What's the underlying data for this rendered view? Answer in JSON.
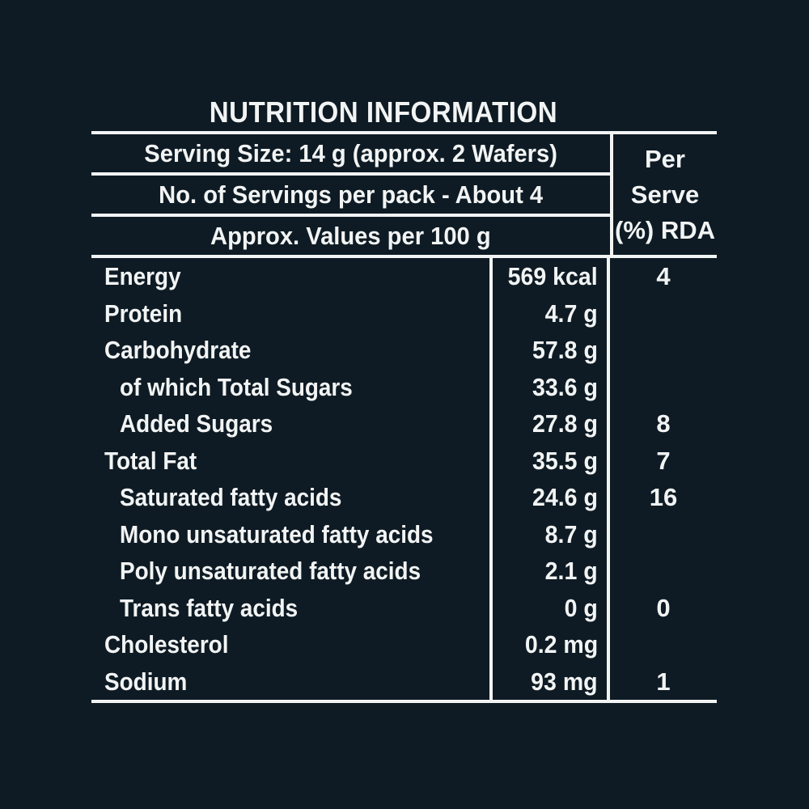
{
  "page": {
    "background_color": "#0e1b24",
    "text_color": "#f2f4f4",
    "line_color": "#f2f4f4"
  },
  "title": "NUTRITION INFORMATION",
  "header": {
    "serving_size": "Serving Size: 14 g (approx. 2 Wafers)",
    "servings_per_pack": "No. of Servings per pack - About 4",
    "values_basis": "Approx. Values per 100 g",
    "rda_column": {
      "line1": "Per",
      "line2": "Serve",
      "line3": "(%) RDA"
    }
  },
  "nutrients": {
    "rows": [
      {
        "label": "Energy",
        "indent": false,
        "value": "569 kcal",
        "rda": "4"
      },
      {
        "label": "Protein",
        "indent": false,
        "value": "4.7 g",
        "rda": ""
      },
      {
        "label": "Carbohydrate",
        "indent": false,
        "value": "57.8 g",
        "rda": ""
      },
      {
        "label": "of which Total Sugars",
        "indent": true,
        "value": "33.6 g",
        "rda": ""
      },
      {
        "label": "Added Sugars",
        "indent": true,
        "value": "27.8 g",
        "rda": "8"
      },
      {
        "label": "Total Fat",
        "indent": false,
        "value": "35.5 g",
        "rda": "7"
      },
      {
        "label": "Saturated fatty acids",
        "indent": true,
        "value": "24.6 g",
        "rda": "16"
      },
      {
        "label": "Mono unsaturated fatty acids",
        "indent": true,
        "value": "8.7 g",
        "rda": ""
      },
      {
        "label": "Poly unsaturated fatty acids",
        "indent": true,
        "value": "2.1 g",
        "rda": ""
      },
      {
        "label": "Trans fatty acids",
        "indent": true,
        "value": "0 g",
        "rda": "0"
      },
      {
        "label": "Cholesterol",
        "indent": false,
        "value": "0.2 mg",
        "rda": ""
      },
      {
        "label": "Sodium",
        "indent": false,
        "value": "93 mg",
        "rda": "1"
      }
    ]
  }
}
